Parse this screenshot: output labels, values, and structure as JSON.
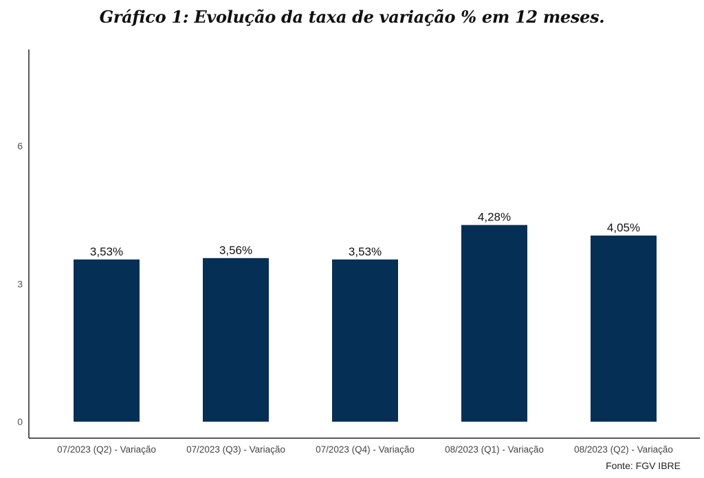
{
  "chart_data": {
    "type": "bar",
    "title": "Gráfico 1: Evolução da taxa de variação % em 12 meses.",
    "xlabel": "",
    "ylabel": "",
    "categories": [
      "07/2023 (Q2) - Variação",
      "07/2023 (Q3) - Variação",
      "07/2023 (Q4) - Variação",
      "08/2023 (Q1) - Variação",
      "08/2023 (Q2) - Variação"
    ],
    "values": [
      3.53,
      3.56,
      3.53,
      4.28,
      4.05
    ],
    "data_labels": [
      "3,53%",
      "3,56%",
      "3,53%",
      "4,28%",
      "4,05%"
    ],
    "ylim": [
      0,
      8.1
    ],
    "yticks": [
      0,
      3,
      6
    ],
    "ytick_labels": [
      "0",
      "3",
      "6"
    ],
    "grid": false,
    "legend": "none",
    "bar_color": "#062f55",
    "source": "Fonte: FGV IBRE"
  }
}
